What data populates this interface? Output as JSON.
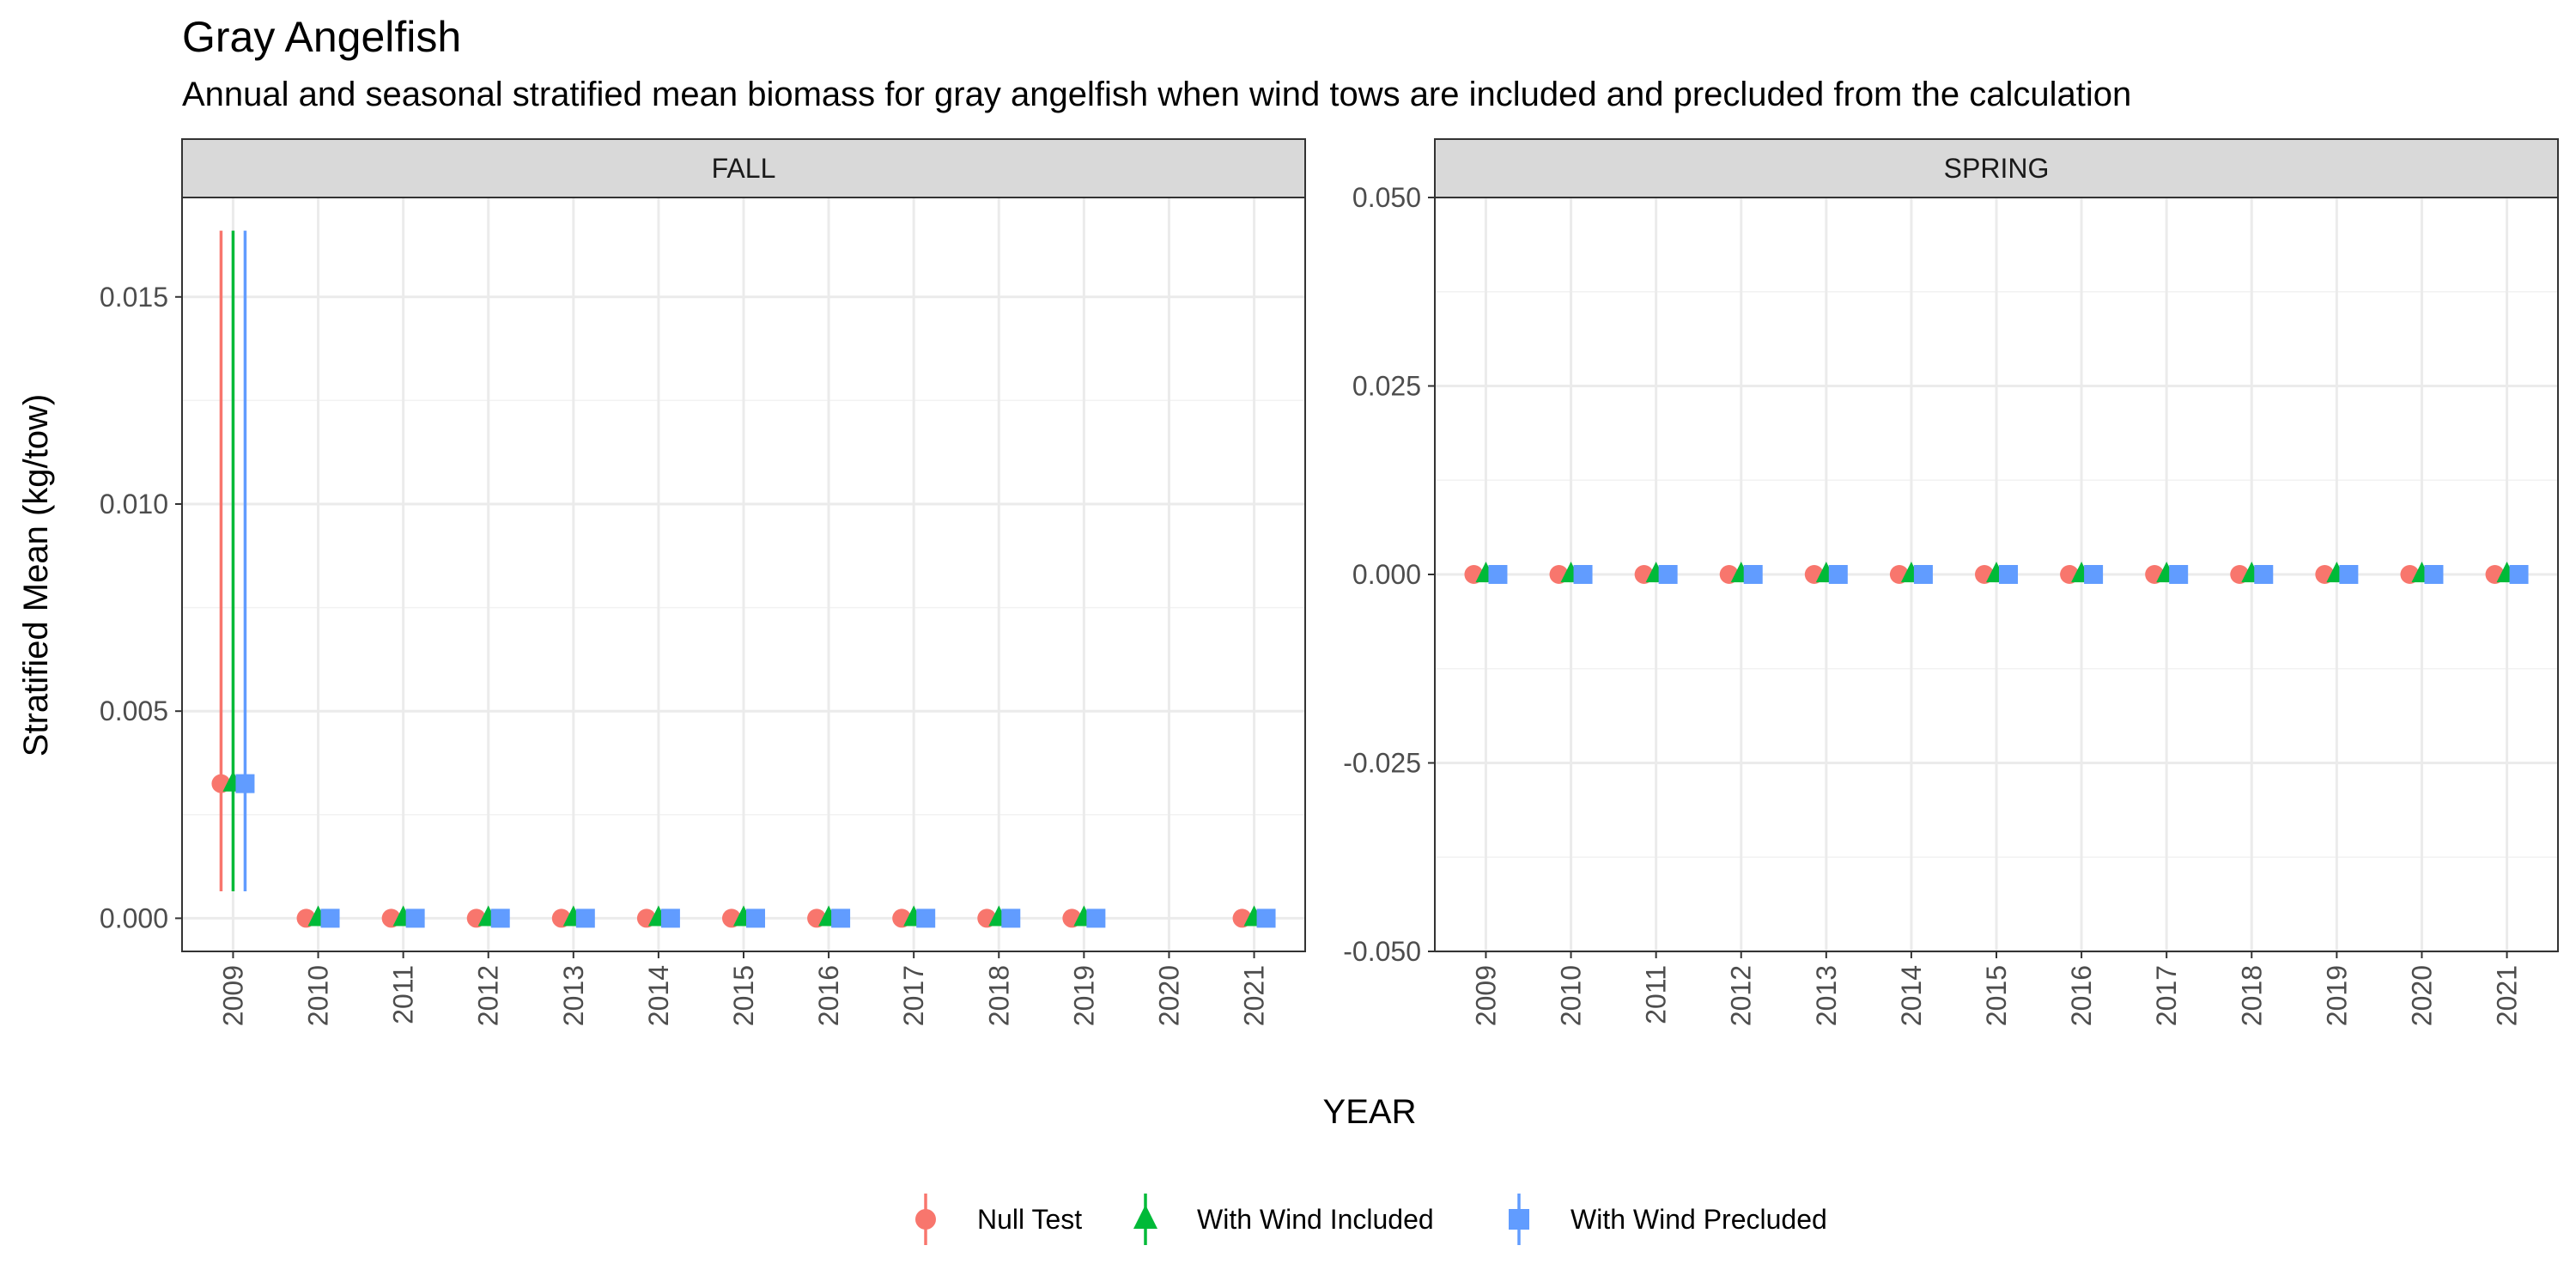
{
  "title": "Gray Angelfish",
  "subtitle": "Annual and seasonal stratified mean biomass for gray angelfish when wind tows are included and precluded from the calculation",
  "chart_data": {
    "type": "scatter",
    "x_label": "YEAR",
    "y_label": "Stratified Mean (kg/tow)",
    "grid": true,
    "legend_position": "bottom",
    "legend": [
      {
        "name": "Null Test",
        "shape": "circle",
        "color": "#F8766D"
      },
      {
        "name": "With Wind Included",
        "shape": "triangle",
        "color": "#00BA38"
      },
      {
        "name": "With Wind Precluded",
        "shape": "square",
        "color": "#619CFF"
      }
    ],
    "panels": [
      {
        "name": "FALL",
        "x_ticks": [
          "2009",
          "2010",
          "2011",
          "2012",
          "2013",
          "2014",
          "2015",
          "2016",
          "2017",
          "2018",
          "2019",
          "2020",
          "2021"
        ],
        "y_ticks": [
          "0.000",
          "0.005",
          "0.010",
          "0.015"
        ],
        "ylim": [
          -0.0008,
          0.0174
        ],
        "series": [
          {
            "name": "Null Test",
            "points": [
              {
                "x": "2009",
                "y": 0.00325,
                "lo": 0.00065,
                "hi": 0.0166
              },
              {
                "x": "2010",
                "y": 0
              },
              {
                "x": "2011",
                "y": 0
              },
              {
                "x": "2012",
                "y": 0
              },
              {
                "x": "2013",
                "y": 0
              },
              {
                "x": "2014",
                "y": 0
              },
              {
                "x": "2015",
                "y": 0
              },
              {
                "x": "2016",
                "y": 0
              },
              {
                "x": "2017",
                "y": 0
              },
              {
                "x": "2018",
                "y": 0
              },
              {
                "x": "2019",
                "y": 0
              },
              {
                "x": "2021",
                "y": 0
              }
            ]
          },
          {
            "name": "With Wind Included",
            "points": [
              {
                "x": "2009",
                "y": 0.00325,
                "lo": 0.00065,
                "hi": 0.0166
              },
              {
                "x": "2010",
                "y": 0
              },
              {
                "x": "2011",
                "y": 0
              },
              {
                "x": "2012",
                "y": 0
              },
              {
                "x": "2013",
                "y": 0
              },
              {
                "x": "2014",
                "y": 0
              },
              {
                "x": "2015",
                "y": 0
              },
              {
                "x": "2016",
                "y": 0
              },
              {
                "x": "2017",
                "y": 0
              },
              {
                "x": "2018",
                "y": 0
              },
              {
                "x": "2019",
                "y": 0
              },
              {
                "x": "2021",
                "y": 0
              }
            ]
          },
          {
            "name": "With Wind Precluded",
            "points": [
              {
                "x": "2009",
                "y": 0.00325,
                "lo": 0.00065,
                "hi": 0.0166
              },
              {
                "x": "2010",
                "y": 0
              },
              {
                "x": "2011",
                "y": 0
              },
              {
                "x": "2012",
                "y": 0
              },
              {
                "x": "2013",
                "y": 0
              },
              {
                "x": "2014",
                "y": 0
              },
              {
                "x": "2015",
                "y": 0
              },
              {
                "x": "2016",
                "y": 0
              },
              {
                "x": "2017",
                "y": 0
              },
              {
                "x": "2018",
                "y": 0
              },
              {
                "x": "2019",
                "y": 0
              },
              {
                "x": "2021",
                "y": 0
              }
            ]
          }
        ]
      },
      {
        "name": "SPRING",
        "x_ticks": [
          "2009",
          "2010",
          "2011",
          "2012",
          "2013",
          "2014",
          "2015",
          "2016",
          "2017",
          "2018",
          "2019",
          "2020",
          "2021"
        ],
        "y_ticks": [
          "-0.050",
          "-0.025",
          "0.000",
          "0.025",
          "0.050"
        ],
        "ylim": [
          -0.05,
          0.05
        ],
        "series": [
          {
            "name": "Null Test",
            "points": [
              {
                "x": "2009",
                "y": 0
              },
              {
                "x": "2010",
                "y": 0
              },
              {
                "x": "2011",
                "y": 0
              },
              {
                "x": "2012",
                "y": 0
              },
              {
                "x": "2013",
                "y": 0
              },
              {
                "x": "2014",
                "y": 0
              },
              {
                "x": "2015",
                "y": 0
              },
              {
                "x": "2016",
                "y": 0
              },
              {
                "x": "2017",
                "y": 0
              },
              {
                "x": "2018",
                "y": 0
              },
              {
                "x": "2019",
                "y": 0
              },
              {
                "x": "2020",
                "y": 0
              },
              {
                "x": "2021",
                "y": 0
              }
            ]
          },
          {
            "name": "With Wind Included",
            "points": [
              {
                "x": "2009",
                "y": 0
              },
              {
                "x": "2010",
                "y": 0
              },
              {
                "x": "2011",
                "y": 0
              },
              {
                "x": "2012",
                "y": 0
              },
              {
                "x": "2013",
                "y": 0
              },
              {
                "x": "2014",
                "y": 0
              },
              {
                "x": "2015",
                "y": 0
              },
              {
                "x": "2016",
                "y": 0
              },
              {
                "x": "2017",
                "y": 0
              },
              {
                "x": "2018",
                "y": 0
              },
              {
                "x": "2019",
                "y": 0
              },
              {
                "x": "2020",
                "y": 0
              },
              {
                "x": "2021",
                "y": 0
              }
            ]
          },
          {
            "name": "With Wind Precluded",
            "points": [
              {
                "x": "2009",
                "y": 0
              },
              {
                "x": "2010",
                "y": 0
              },
              {
                "x": "2011",
                "y": 0
              },
              {
                "x": "2012",
                "y": 0
              },
              {
                "x": "2013",
                "y": 0
              },
              {
                "x": "2014",
                "y": 0
              },
              {
                "x": "2015",
                "y": 0
              },
              {
                "x": "2016",
                "y": 0
              },
              {
                "x": "2017",
                "y": 0
              },
              {
                "x": "2018",
                "y": 0
              },
              {
                "x": "2019",
                "y": 0
              },
              {
                "x": "2020",
                "y": 0
              },
              {
                "x": "2021",
                "y": 0
              }
            ]
          }
        ]
      }
    ]
  }
}
